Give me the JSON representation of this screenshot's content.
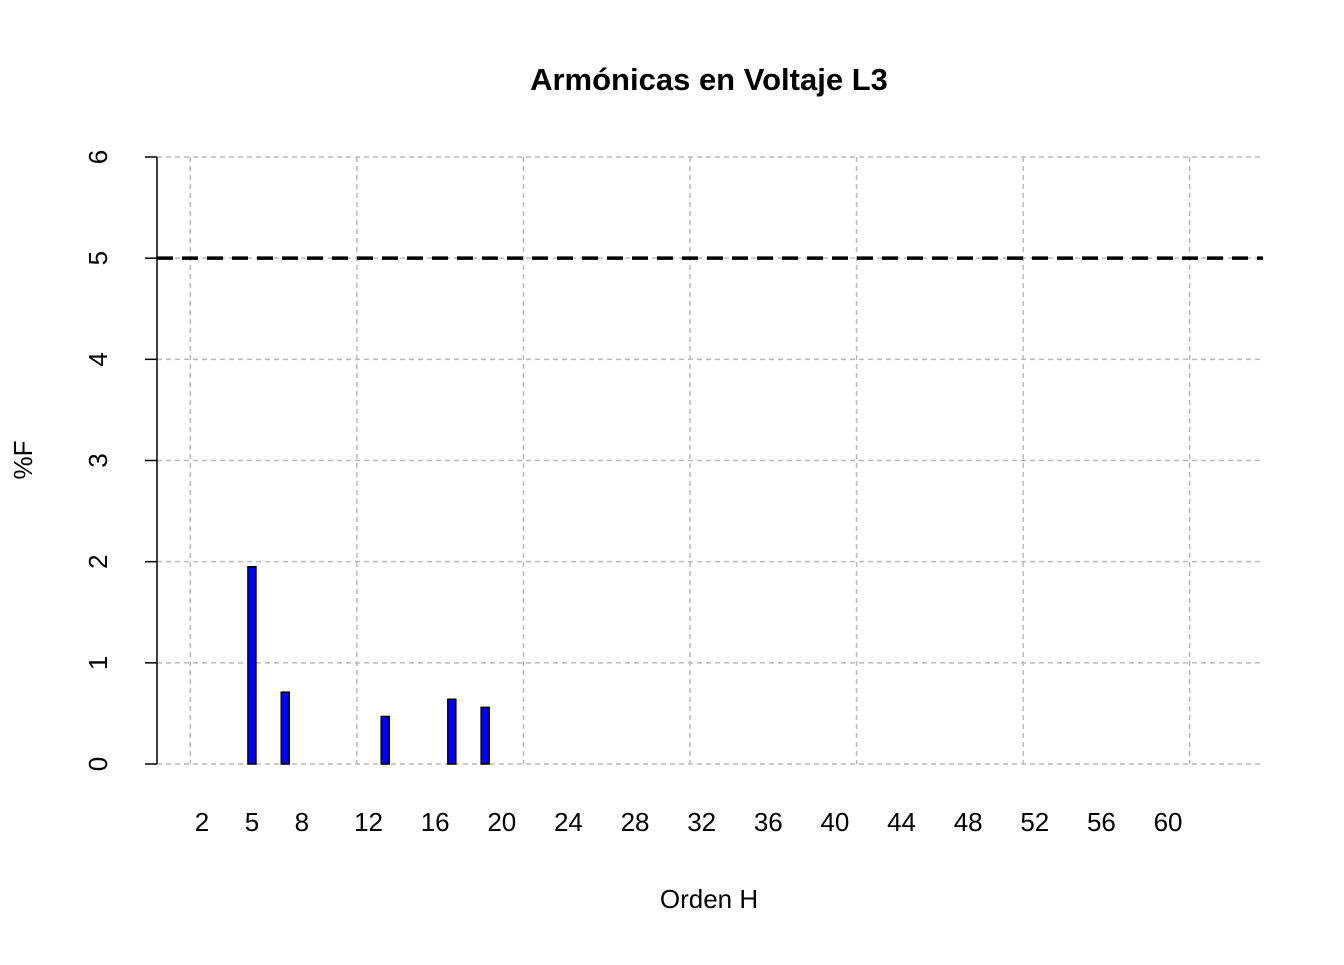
{
  "chart_data": {
    "type": "bar",
    "title": "Armónicas en Voltaje L3",
    "x_label": "Orden H",
    "y_label": "%F",
    "x": [
      2,
      3,
      4,
      5,
      6,
      7,
      8,
      9,
      10,
      11,
      12,
      13,
      14,
      15,
      16,
      17,
      18,
      19,
      20,
      21,
      22,
      23,
      24,
      25,
      26,
      27,
      28,
      29,
      30,
      31,
      32,
      33,
      34,
      35,
      36,
      37,
      38,
      39,
      40,
      41,
      42,
      43,
      44,
      45,
      46,
      47,
      48,
      49,
      50,
      51,
      52,
      53,
      54,
      55,
      56,
      57,
      58,
      59,
      60,
      61,
      62,
      63
    ],
    "values": [
      0,
      0,
      0,
      1.95,
      0,
      0.71,
      0,
      0,
      0,
      0,
      0,
      0.47,
      0,
      0,
      0,
      0.64,
      0,
      0.56,
      0,
      0,
      0,
      0,
      0,
      0,
      0,
      0,
      0,
      0,
      0,
      0,
      0,
      0,
      0,
      0,
      0,
      0,
      0,
      0,
      0,
      0,
      0,
      0,
      0,
      0,
      0,
      0,
      0,
      0,
      0,
      0,
      0,
      0,
      0,
      0,
      0,
      0,
      0,
      0,
      0,
      0,
      0,
      0
    ],
    "color": "#0000ff",
    "xlim": [
      -0.7,
      65.7
    ],
    "xticks": [
      2,
      5,
      8,
      12,
      16,
      20,
      24,
      28,
      32,
      36,
      40,
      44,
      48,
      52,
      56,
      60
    ],
    "xgrid": [
      1.3,
      11.3,
      21.3,
      31.3,
      41.3,
      51.3,
      61.3
    ],
    "ylim": [
      0,
      6
    ],
    "yticks": [
      0,
      1,
      2,
      3,
      4,
      5,
      6
    ],
    "grid": true,
    "hline": 5
  }
}
